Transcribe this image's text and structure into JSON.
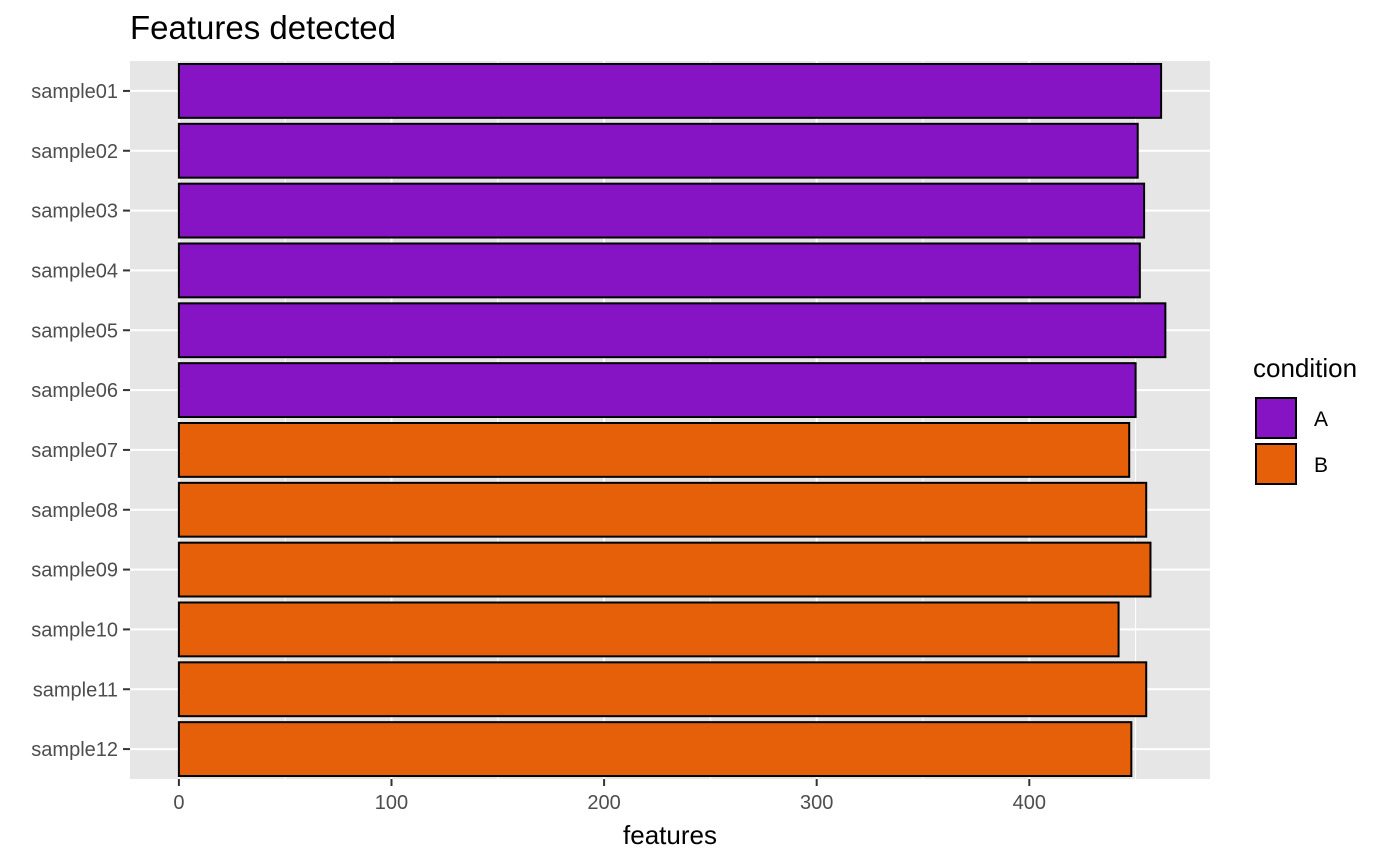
{
  "chart_data": {
    "type": "bar",
    "orientation": "horizontal",
    "title": "Features detected",
    "xlabel": "features",
    "ylabel": "",
    "categories": [
      "sample01",
      "sample02",
      "sample03",
      "sample04",
      "sample05",
      "sample06",
      "sample07",
      "sample08",
      "sample09",
      "sample10",
      "sample11",
      "sample12"
    ],
    "values": [
      462,
      451,
      454,
      452,
      464,
      450,
      447,
      455,
      457,
      442,
      455,
      448
    ],
    "groups": [
      "A",
      "A",
      "A",
      "A",
      "A",
      "A",
      "B",
      "B",
      "B",
      "B",
      "B",
      "B"
    ],
    "xlim": [
      -23,
      485
    ],
    "xticks": [
      0,
      100,
      200,
      300,
      400
    ],
    "legend": {
      "title": "condition",
      "position": "right",
      "entries": [
        {
          "label": "A",
          "color": "#8714C4"
        },
        {
          "label": "B",
          "color": "#E6600A"
        }
      ]
    },
    "grid": true,
    "colors": {
      "panel": "#E6E6E6",
      "grid": "#FFFFFF",
      "bar_outline": "#000000"
    }
  }
}
